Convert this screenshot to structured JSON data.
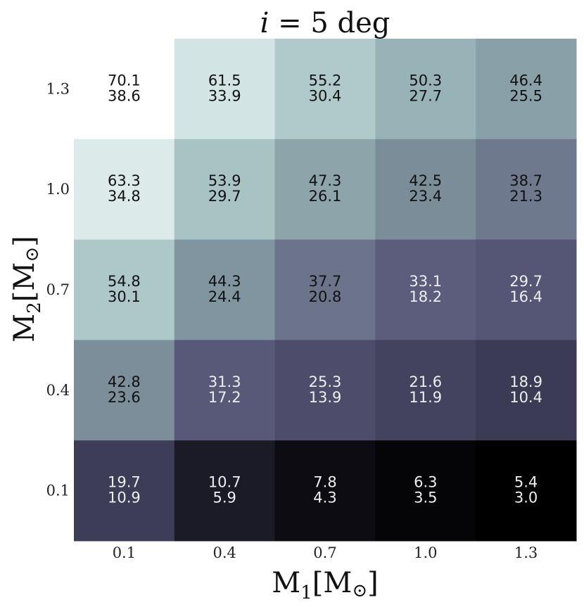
{
  "chart_data": {
    "type": "heatmap",
    "title_parts": {
      "variable": "i",
      "rest": "= 5 deg"
    },
    "xlabel_parts": {
      "base": "M",
      "sub": "1",
      "rest": "[M",
      "sun": "⊙",
      "close": "]"
    },
    "ylabel_parts": {
      "base": "M",
      "sub": "2",
      "rest": "[M",
      "sun": "⊙",
      "close": "]"
    },
    "x_categories": [
      "0.1",
      "0.4",
      "0.7",
      "1.0",
      "1.3"
    ],
    "y_categories": [
      "1.3",
      "1.0",
      "0.7",
      "0.4",
      "0.1"
    ],
    "values_top": [
      [
        70.1,
        61.5,
        55.2,
        50.3,
        46.4
      ],
      [
        63.3,
        53.9,
        47.3,
        42.5,
        38.7
      ],
      [
        54.8,
        44.3,
        37.7,
        33.1,
        29.7
      ],
      [
        42.8,
        31.3,
        25.3,
        21.6,
        18.9
      ],
      [
        19.7,
        10.7,
        7.8,
        6.3,
        5.4
      ]
    ],
    "values_bottom": [
      [
        38.6,
        33.9,
        30.4,
        27.7,
        25.5
      ],
      [
        34.8,
        29.7,
        26.1,
        23.4,
        21.3
      ],
      [
        30.1,
        24.4,
        20.8,
        18.2,
        16.4
      ],
      [
        23.6,
        17.2,
        13.9,
        11.9,
        10.4
      ],
      [
        10.9,
        5.9,
        4.3,
        3.5,
        3.0
      ]
    ],
    "colormap": "bone (reversed)",
    "color_range": [
      5.4,
      70.1
    ],
    "colorbar": false,
    "grid": false
  },
  "colors": {
    "colormap_stops": [
      "#000000",
      "#2f2e44",
      "#4a4a68",
      "#5c5c7c",
      "#7a8c98",
      "#9db9bc",
      "#cfe2e2",
      "#ffffff"
    ],
    "text_dark": "#111111",
    "text_light": "#eeeeee"
  }
}
